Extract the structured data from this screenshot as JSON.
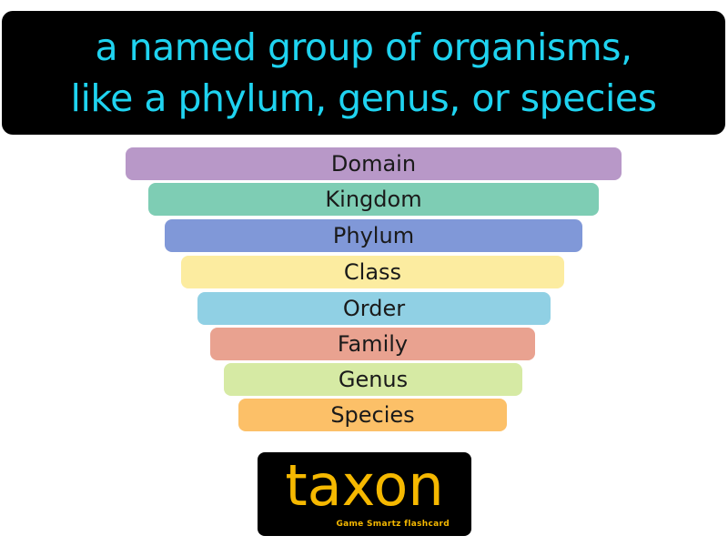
{
  "definition": {
    "line1": "a named group of organisms,",
    "line2": "like a phylum, genus, or species",
    "text_color": "#1fd3f0",
    "background": "#000000"
  },
  "hierarchy": {
    "levels": [
      {
        "label": "Domain",
        "color": "#b898c8"
      },
      {
        "label": "Kingdom",
        "color": "#7ecdb4"
      },
      {
        "label": "Phylum",
        "color": "#8098d8"
      },
      {
        "label": "Class",
        "color": "#fceca0"
      },
      {
        "label": "Order",
        "color": "#90d0e4"
      },
      {
        "label": "Family",
        "color": "#e9a290"
      },
      {
        "label": "Genus",
        "color": "#d6eaa4"
      },
      {
        "label": "Species",
        "color": "#fcc068"
      }
    ]
  },
  "term": {
    "word": "taxon",
    "brand": "Game Smartz flashcard",
    "text_color": "#f5b800"
  }
}
